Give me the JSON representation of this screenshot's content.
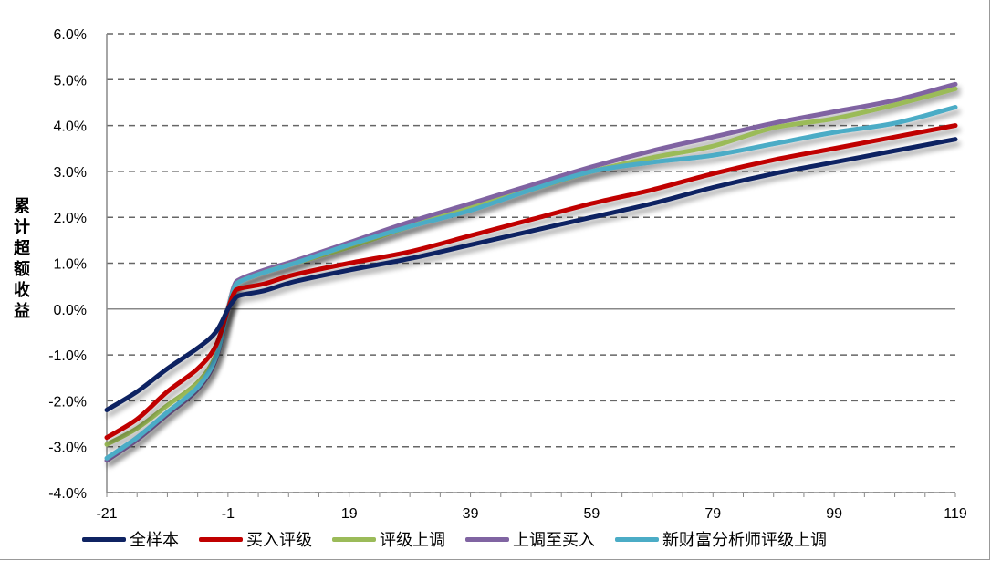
{
  "chart_data": {
    "type": "line",
    "title": "",
    "xlabel": "",
    "ylabel": "累计超额收益",
    "xlim": [
      -21,
      119
    ],
    "ylim": [
      -4.0,
      6.0
    ],
    "x_ticks": [
      "-21",
      "-1",
      "19",
      "39",
      "59",
      "79",
      "99",
      "119"
    ],
    "y_ticks": [
      "6.0%",
      "5.0%",
      "4.0%",
      "3.0%",
      "2.0%",
      "1.0%",
      "0.0%",
      "-1.0%",
      "-2.0%",
      "-3.0%",
      "-4.0%"
    ],
    "grid": "horizontal dashed",
    "legend_position": "bottom",
    "x": [
      -21,
      -16,
      -11,
      -6,
      -3,
      -1,
      0,
      1,
      5,
      10,
      19,
      29,
      39,
      49,
      59,
      69,
      79,
      89,
      99,
      109,
      119
    ],
    "series": [
      {
        "name": "全样本",
        "color": "#0f2362",
        "values": [
          -2.2,
          -1.8,
          -1.3,
          -0.85,
          -0.5,
          0,
          0.2,
          0.3,
          0.4,
          0.6,
          0.85,
          1.1,
          1.4,
          1.7,
          2.0,
          2.3,
          2.65,
          2.95,
          3.2,
          3.45,
          3.7
        ]
      },
      {
        "name": "买入评级",
        "color": "#c00000",
        "values": [
          -2.8,
          -2.4,
          -1.8,
          -1.3,
          -0.8,
          0,
          0.35,
          0.45,
          0.55,
          0.75,
          1.0,
          1.25,
          1.6,
          1.95,
          2.3,
          2.6,
          2.95,
          3.25,
          3.5,
          3.75,
          4.0
        ]
      },
      {
        "name": "评级上调",
        "color": "#9bbb59",
        "values": [
          -2.95,
          -2.6,
          -2.1,
          -1.6,
          -1.0,
          0,
          0.45,
          0.6,
          0.8,
          1.0,
          1.35,
          1.8,
          2.2,
          2.6,
          3.0,
          3.3,
          3.55,
          3.95,
          4.15,
          4.45,
          4.8
        ]
      },
      {
        "name": "上调至买入",
        "color": "#8064a2",
        "values": [
          -3.3,
          -2.85,
          -2.3,
          -1.75,
          -1.1,
          0,
          0.5,
          0.65,
          0.85,
          1.05,
          1.45,
          1.9,
          2.3,
          2.7,
          3.1,
          3.45,
          3.75,
          4.05,
          4.3,
          4.55,
          4.9
        ]
      },
      {
        "name": "新财富分析师评级上调",
        "color": "#4bacc6",
        "values": [
          -3.25,
          -2.8,
          -2.25,
          -1.7,
          -1.05,
          0,
          0.45,
          0.6,
          0.8,
          1.0,
          1.4,
          1.8,
          2.15,
          2.6,
          3.0,
          3.2,
          3.35,
          3.6,
          3.85,
          4.05,
          4.4
        ]
      }
    ]
  }
}
